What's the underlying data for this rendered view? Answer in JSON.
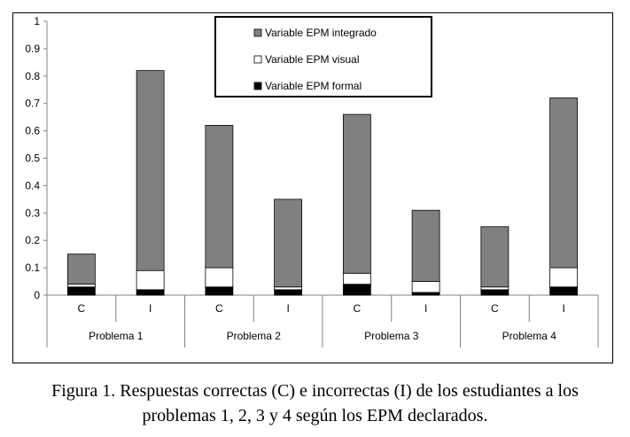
{
  "chart_data": {
    "type": "bar",
    "stacked": true,
    "title": "",
    "xlabel": "",
    "ylabel": "",
    "ylim": [
      0,
      1
    ],
    "yticks": [
      "0",
      "0.1",
      "0.2",
      "0.3",
      "0.4",
      "0.5",
      "0.6",
      "0.7",
      "0.8",
      "0.9",
      "1"
    ],
    "grid": false,
    "legend_position": "top-center",
    "groups": [
      "Problema 1",
      "Problema 2",
      "Problema 3",
      "Problema 4"
    ],
    "categories": [
      "C",
      "I",
      "C",
      "I",
      "C",
      "I",
      "C",
      "I"
    ],
    "series": [
      {
        "name": "Variable EPM formal",
        "color": "#000000",
        "values": [
          0.03,
          0.02,
          0.03,
          0.02,
          0.04,
          0.01,
          0.02,
          0.03
        ]
      },
      {
        "name": "Variable EPM visual",
        "color": "#ffffff",
        "values": [
          0.01,
          0.07,
          0.07,
          0.01,
          0.04,
          0.04,
          0.01,
          0.07
        ]
      },
      {
        "name": "Variable EPM integrado",
        "color": "#808080",
        "values": [
          0.11,
          0.73,
          0.52,
          0.32,
          0.58,
          0.26,
          0.22,
          0.62
        ]
      }
    ]
  },
  "caption": {
    "line1": "Figura 1. Respuestas correctas (C) e incorrectas (I) de los estudiantes a los",
    "line2": "problemas 1, 2, 3 y 4 según los EPM declarados."
  }
}
